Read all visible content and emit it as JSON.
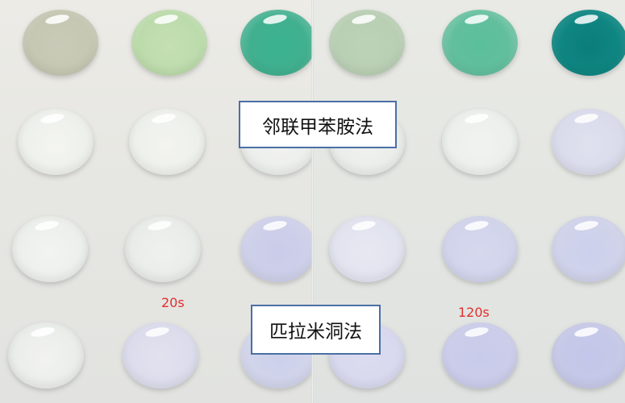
{
  "labels": {
    "method_top": "邻联甲苯胺法",
    "method_bottom": "匹拉米洞法",
    "time_left": "20s",
    "time_right": "120s"
  },
  "colors": {
    "label_border": "#4a6fa5",
    "time_text": "#e03030",
    "well_row1_left": [
      "#c9cbb8",
      "#c4e0b4",
      "#3bb391"
    ],
    "well_row1_right": [
      "#bdd3b8",
      "#5bbf9c",
      "#0b7d7a"
    ],
    "well_white": "#f2f3ef",
    "well_lavender": "#d4d6ec",
    "well_lavender_strong": "#c4c6ea"
  }
}
